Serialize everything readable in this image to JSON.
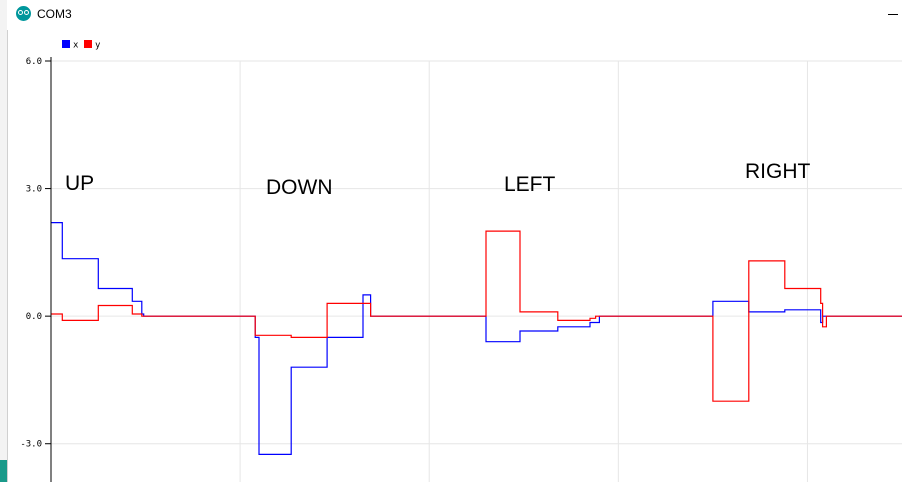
{
  "window": {
    "title": "COM3"
  },
  "colors": {
    "x": "#0000ff",
    "y": "#ff0000",
    "grid": "#e6e6e6",
    "axis": "#000000"
  },
  "annotations": [
    "UP",
    "DOWN",
    "LEFT",
    "RIGHT"
  ],
  "chart_data": {
    "type": "line",
    "title": "",
    "xlabel": "",
    "ylabel": "",
    "ylim": [
      -3.9,
      6.0
    ],
    "xlim": [
      0,
      450
    ],
    "y_ticks": [
      "6.0",
      "3.0",
      "0.0",
      "-3.0"
    ],
    "y_tick_values": [
      6.0,
      3.0,
      0.0,
      -3.0
    ],
    "grid": true,
    "legend": "top-left",
    "annotations": [
      {
        "text": "UP",
        "x": 14
      },
      {
        "text": "DOWN",
        "x": 108
      },
      {
        "text": "LEFT",
        "x": 227
      },
      {
        "text": "RIGHT",
        "x": 348
      }
    ],
    "series": [
      {
        "name": "x",
        "color": "#0000ff",
        "x": [
          0,
          6,
          6,
          25,
          25,
          43,
          43,
          48,
          48,
          49,
          49,
          108,
          108,
          110,
          110,
          127,
          127,
          146,
          146,
          165,
          165,
          165,
          165,
          169,
          169,
          170,
          170,
          230,
          230,
          248,
          248,
          268,
          268,
          285,
          285,
          290,
          290,
          291,
          291,
          350,
          350,
          369,
          369,
          388,
          388,
          407,
          407,
          408,
          408,
          412,
          412,
          450
        ],
        "y": [
          2.2,
          2.2,
          1.35,
          1.35,
          0.65,
          0.65,
          0.35,
          0.35,
          0.05,
          0.05,
          0.0,
          0.0,
          -0.5,
          -0.5,
          -3.25,
          -3.25,
          -1.2,
          -1.2,
          -0.5,
          -0.5,
          0.0,
          0.0,
          0.5,
          0.5,
          0.0,
          0.0,
          0.0,
          0.0,
          -0.6,
          -0.6,
          -0.35,
          -0.35,
          -0.25,
          -0.25,
          -0.15,
          -0.15,
          0.0,
          0.0,
          0.0,
          0.0,
          0.35,
          0.35,
          0.1,
          0.1,
          0.15,
          0.15,
          -0.15,
          -0.15,
          0.0,
          0.0,
          0.0,
          0.0
        ]
      },
      {
        "name": "y",
        "color": "#ff0000",
        "x": [
          0,
          6,
          6,
          25,
          25,
          43,
          43,
          48,
          48,
          108,
          108,
          127,
          127,
          146,
          146,
          165,
          165,
          169,
          169,
          230,
          230,
          248,
          248,
          268,
          268,
          285,
          285,
          288,
          288,
          350,
          350,
          369,
          369,
          388,
          388,
          407,
          407,
          408,
          408,
          410,
          410,
          450
        ],
        "y": [
          0.05,
          0.05,
          -0.1,
          -0.1,
          0.25,
          0.25,
          0.05,
          0.05,
          0.0,
          0.0,
          -0.45,
          -0.45,
          -0.5,
          -0.5,
          0.3,
          0.3,
          0.3,
          0.3,
          0.0,
          0.0,
          2.0,
          2.0,
          0.1,
          0.1,
          -0.1,
          -0.1,
          -0.05,
          -0.05,
          0.0,
          0.0,
          -2.0,
          -2.0,
          1.3,
          1.3,
          0.65,
          0.65,
          0.3,
          0.3,
          -0.25,
          -0.25,
          0.0,
          0.0
        ]
      }
    ]
  }
}
